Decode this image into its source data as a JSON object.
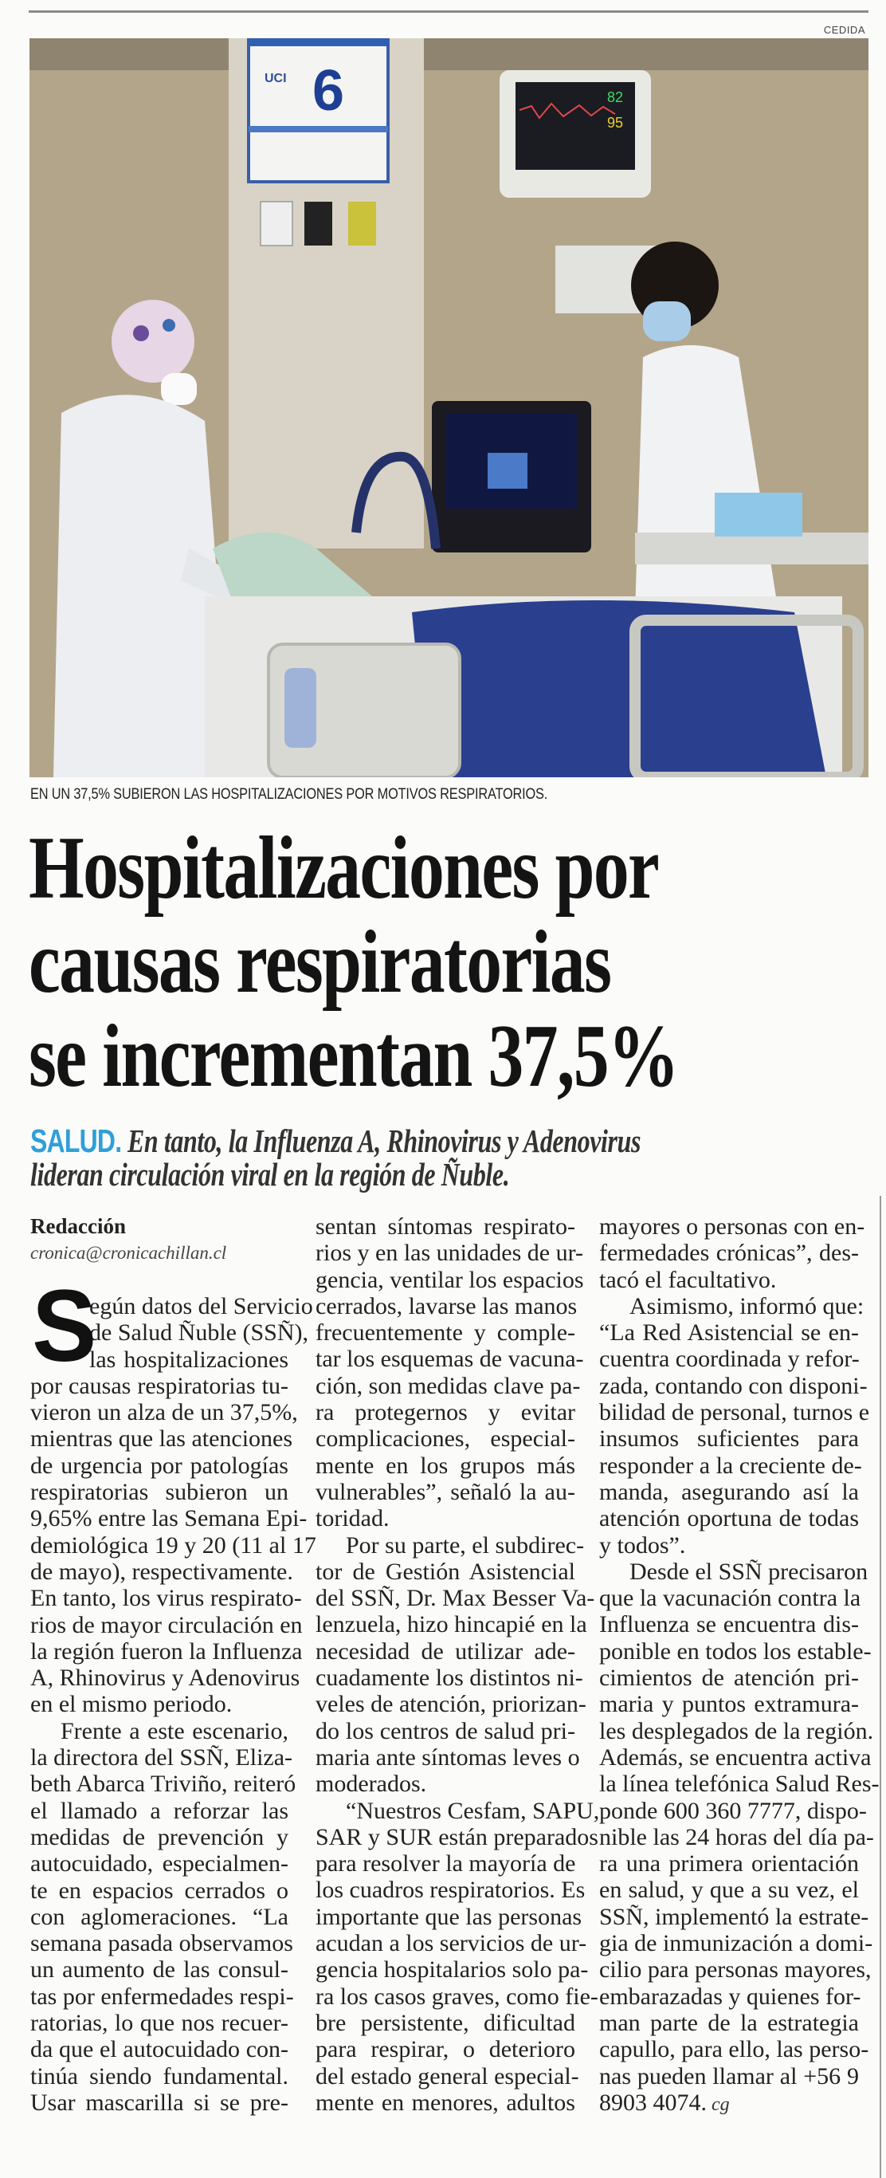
{
  "credit": "CEDIDA",
  "photo": {
    "signage_unit": "UCI",
    "signage_bed": "6",
    "monitor_values": [
      "82",
      "95"
    ],
    "colors": {
      "wall": "#b3a58a",
      "blanket": "#2b3f8f",
      "gown": "#eef0f2"
    }
  },
  "caption": "EN UN 37,5% SUBIERON LAS HOSPITALIZACIONES POR MOTIVOS RESPIRATORIOS.",
  "headline": [
    "Hospitalizaciones por",
    "causas respiratorias",
    "se incrementan 37,5%"
  ],
  "subhead": {
    "kicker": "SALUD.",
    "line1": " En tanto, la Influenza A, Rhinovirus y Adenovirus",
    "line2": "lideran circulación viral en la región de Ñuble.",
    "kicker_color": "#2f9fd8"
  },
  "byline": {
    "author": "Redacción",
    "email": "cronica@cronicachillan.cl"
  },
  "body": {
    "dropcap": "S",
    "col1": [
      [
        "egún datos del Servicio",
        "de Salud Ñuble (SSÑ),",
        "las hospitalizaciones",
        "por causas respiratorias tu-",
        "vieron un alza de un 37,5%,",
        "mientras que las atenciones",
        "de urgencia por patologías",
        "respiratorias subieron un",
        "9,65% entre las Semana Epi-",
        "demiológica 19 y 20 (11 al 17",
        "de mayo), respectivamente.",
        "En tanto, los virus respirato-",
        "rios de mayor circulación en",
        "la región fueron la Influenza",
        "A, Rhinovirus y Adenovirus",
        "en el mismo periodo."
      ],
      [
        "Frente a este escenario,",
        "la directora del SSÑ, Eliza-",
        "beth Abarca Triviño, reiteró",
        "el llamado a reforzar las",
        "medidas de prevención y",
        "autocuidado, especialmen-",
        "te en espacios cerrados o",
        "con aglomeraciones. “La",
        "semana pasada observamos",
        "un aumento de las consul-",
        "tas por enfermedades respi-",
        "ratorias, lo que nos recuer-",
        "da que el autocuidado con-",
        "tinúa siendo fundamental.",
        "Usar mascarilla si se pre-"
      ]
    ],
    "col2": [
      [
        "sentan síntomas respirato-",
        "rios y en las unidades de ur-",
        "gencia, ventilar los espacios",
        "cerrados, lavarse las manos",
        "frecuentemente y comple-",
        "tar los esquemas de vacuna-",
        "ción, son medidas clave pa-",
        "ra protegernos y evitar",
        "complicaciones, especial-",
        "mente en los grupos más",
        "vulnerables”, señaló la au-",
        "toridad."
      ],
      [
        "Por su parte, el subdirec-",
        "tor de Gestión Asistencial",
        "del SSÑ, Dr. Max Besser Va-",
        "lenzuela, hizo hincapié en la",
        "necesidad de utilizar ade-",
        "cuadamente los distintos ni-",
        "veles de atención, priorizan-",
        "do los centros de salud pri-",
        "maria ante síntomas leves o",
        "moderados."
      ],
      [
        "“Nuestros Cesfam, SAPU,",
        "SAR y SUR están preparados",
        "para resolver la mayoría de",
        "los cuadros respiratorios. Es",
        "importante que las personas",
        "acudan a los servicios de ur-",
        "gencia hospitalarios solo pa-",
        "ra los casos graves, como fie-",
        "bre persistente, dificultad",
        "para respirar, o deterioro",
        "del estado general especial-",
        "mente en menores, adultos"
      ]
    ],
    "col3": [
      [
        "mayores o personas con en-",
        "fermedades crónicas”, des-",
        "tacó el facultativo."
      ],
      [
        "Asimismo, informó que:",
        "“La Red Asistencial se en-",
        "cuentra coordinada y refor-",
        "zada, contando con disponi-",
        "bilidad de personal, turnos e",
        "insumos suficientes para",
        "responder a la creciente de-",
        "manda, asegurando así la",
        "atención oportuna de todas",
        "y todos”."
      ],
      [
        "Desde el SSÑ precisaron",
        "que la vacunación contra la",
        "Influenza se encuentra dis-",
        "ponible en todos los estable-",
        "cimientos de atención pri-",
        "maria y puntos extramura-",
        "les desplegados de la región.",
        "Además, se encuentra activa",
        "la línea telefónica Salud Res-",
        "ponde 600 360 7777, dispo-",
        "nible las 24 horas del día pa-",
        "ra una primera orientación",
        "en salud, y que a su vez, el",
        "SSÑ, implementó la estrate-",
        "gia de inmunización a domi-",
        "cilio para personas mayores,",
        "embarazadas y quienes for-",
        "man parte de la estrategia",
        "capullo, para ello, las perso-",
        "nas pueden llamar al +56 9",
        "8903 4074."
      ]
    ],
    "end_mark": "cg"
  }
}
